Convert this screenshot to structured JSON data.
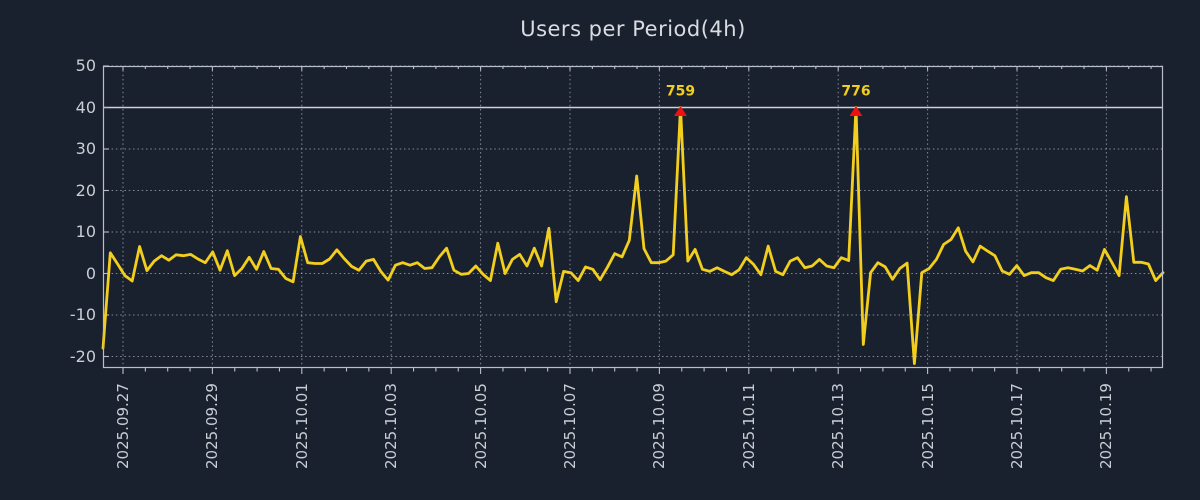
{
  "window": {
    "background_color": "#1a212e"
  },
  "chart_data": {
    "type": "line",
    "title": "Users per Period(4h)",
    "period_label": "4h",
    "grid": true,
    "legend": "none",
    "y_ticks": [
      50,
      40,
      30,
      20,
      10,
      0,
      -10,
      -20
    ],
    "ylim": [
      -22.8,
      50
    ],
    "clip_value": 40,
    "x_tick_labels": [
      "2025.09.27",
      "2025.09.29",
      "2025.10.01",
      "2025.10.03",
      "2025.10.05",
      "2025.10.07",
      "2025.10.09",
      "2025.10.11",
      "2025.10.13",
      "2025.10.15",
      "2025.10.17",
      "2025.10.19"
    ],
    "x_minor_tick_interval_hours": 12,
    "point_interval_hours": 4,
    "series": [
      {
        "name": "users",
        "color": "#f2ce1e",
        "values": [
          -18,
          5,
          2.3,
          -0.5,
          -1.8,
          6.5,
          0.7,
          3,
          4.3,
          3.2,
          4.5,
          4.3,
          4.6,
          3.5,
          2.6,
          5.2,
          0.8,
          5.5,
          -0.5,
          1.2,
          3.9,
          1,
          5.3,
          1.2,
          1,
          -1.2,
          -2,
          8.9,
          2.6,
          2.4,
          2.4,
          3.5,
          5.7,
          3.6,
          1.7,
          0.8,
          3,
          3.4,
          0.5,
          -1.6,
          2,
          2.6,
          2,
          2.6,
          1.2,
          1.4,
          4,
          6.1,
          0.8,
          -0.2,
          0,
          1.8,
          -0.2,
          -1.7,
          7.3,
          0,
          3.4,
          4.6,
          1.8,
          6.1,
          1.8,
          10.9,
          -6.8,
          0.5,
          0.2,
          -1.7,
          1.6,
          1,
          -1.5,
          1.5,
          4.8,
          4,
          8,
          23.5,
          6,
          2.6,
          2.6,
          3,
          4.5,
          759,
          3,
          5.8,
          1,
          0.5,
          1.4,
          0.5,
          -0.3,
          0.9,
          3.8,
          2.2,
          -0.3,
          6.6,
          0.5,
          -0.3,
          3,
          3.8,
          1.4,
          1.8,
          3.4,
          1.8,
          1.4,
          3.8,
          3.1,
          776,
          -17.1,
          0.2,
          2.6,
          1.6,
          -1.4,
          1.2,
          2.5,
          -21.7,
          0.2,
          1.2,
          3.4,
          7,
          8.2,
          11,
          5.4,
          2.8,
          6.6,
          5.4,
          4.3,
          0.6,
          -0.2,
          1.9,
          -0.5,
          0.2,
          0.2,
          -1,
          -1.7,
          1,
          1.4,
          1,
          0.6,
          1.9,
          0.8,
          5.8,
          2.7,
          -0.5,
          18.5,
          2.7,
          2.7,
          2.3,
          -1.7,
          0.2
        ]
      }
    ],
    "annotations": [
      {
        "label": "759",
        "value": 759,
        "index": 79,
        "marker": "red-triangle-up",
        "text_color": "#f2ce1e",
        "marker_color": "#ee1111"
      },
      {
        "label": "776",
        "value": 776,
        "index": 103,
        "marker": "red-triangle-up",
        "text_color": "#f2ce1e",
        "marker_color": "#ee1111"
      }
    ],
    "colors": {
      "background": "#1a212e",
      "frame": "#b9bfc8",
      "grid_dotted": "#c5cbd4",
      "clip_line_solid": "#ccd2da",
      "title_text": "#d9dce0",
      "tick_label_text": "#c9ced5",
      "series_line": "#f2ce1e",
      "annotation_marker": "#ee1111"
    }
  }
}
